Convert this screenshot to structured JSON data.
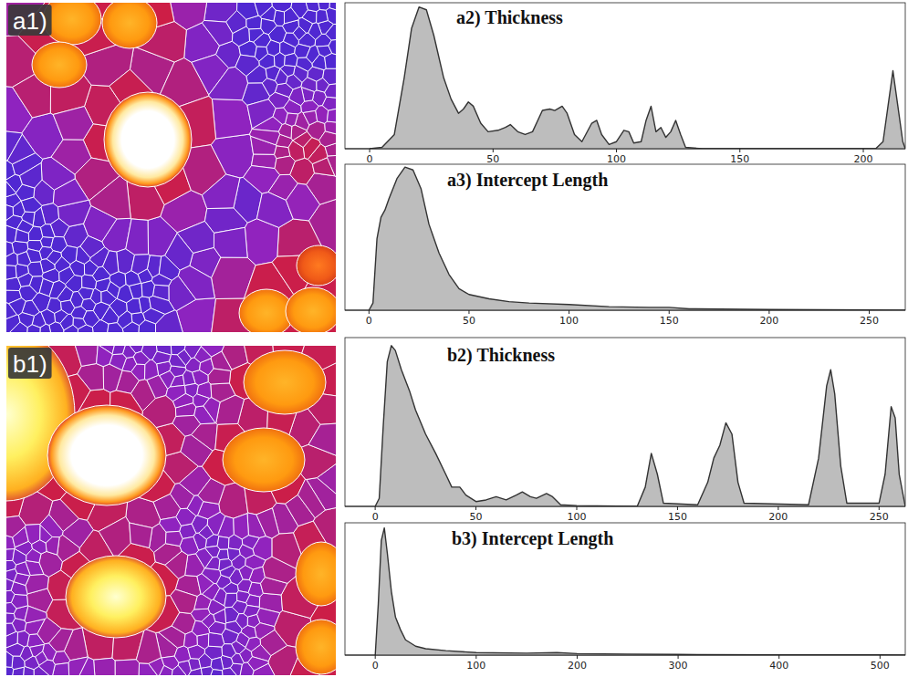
{
  "images": [
    {
      "label": "a1)"
    },
    {
      "label": "b1)"
    }
  ],
  "chart_data": [
    {
      "type": "area",
      "title": "a2) Thickness",
      "color": "#bdbdbd",
      "tick_labels": "x",
      "x": [
        0,
        5,
        10,
        14,
        17,
        20,
        23,
        26,
        30,
        33,
        36,
        38,
        40,
        42,
        45,
        48,
        52,
        55,
        57,
        60,
        63,
        66,
        70,
        73,
        75,
        78,
        80,
        83,
        86,
        90,
        92,
        94,
        97,
        100,
        103,
        105,
        107,
        110,
        112,
        114,
        116,
        118,
        120,
        122,
        124,
        126,
        128,
        135,
        205,
        208,
        210,
        212,
        214,
        216,
        217
      ],
      "values": [
        0,
        0.01,
        0.1,
        0.5,
        0.85,
        1.0,
        0.98,
        0.8,
        0.5,
        0.35,
        0.25,
        0.28,
        0.33,
        0.3,
        0.18,
        0.12,
        0.13,
        0.15,
        0.17,
        0.12,
        0.1,
        0.12,
        0.27,
        0.28,
        0.27,
        0.3,
        0.25,
        0.1,
        0.05,
        0.18,
        0.2,
        0.1,
        0.03,
        0.05,
        0.13,
        0.12,
        0.04,
        0.05,
        0.2,
        0.3,
        0.12,
        0.15,
        0.08,
        0.12,
        0.2,
        0.1,
        0.01,
        0,
        0,
        0.05,
        0.3,
        0.55,
        0.3,
        0.05,
        0
      ],
      "xlim": [
        -10,
        217
      ],
      "xticks": [
        0,
        50,
        100,
        150,
        200
      ],
      "ylim": [
        0,
        1.03
      ]
    },
    {
      "type": "area",
      "title": "a3) Intercept Length",
      "color": "#bdbdbd",
      "tick_labels": "x",
      "x": [
        0,
        2,
        4,
        6,
        8,
        10,
        14,
        18,
        22,
        26,
        30,
        35,
        40,
        45,
        50,
        60,
        70,
        80,
        100,
        120,
        140,
        150,
        160,
        200,
        250,
        268
      ],
      "values": [
        0,
        0.05,
        0.5,
        0.65,
        0.7,
        0.78,
        0.92,
        1.0,
        0.98,
        0.85,
        0.6,
        0.4,
        0.25,
        0.15,
        0.11,
        0.08,
        0.06,
        0.05,
        0.04,
        0.025,
        0.02,
        0.02,
        0.01,
        0.005,
        0.002,
        0
      ],
      "xlim": [
        -12,
        268
      ],
      "xticks": [
        0,
        50,
        100,
        150,
        200,
        250
      ],
      "ylim": [
        0,
        1.02
      ]
    },
    {
      "type": "area",
      "title": "b2) Thickness",
      "color": "#bdbdbd",
      "tick_labels": "x",
      "x": [
        0,
        2,
        4,
        6,
        8,
        10,
        13,
        17,
        20,
        25,
        30,
        35,
        38,
        42,
        45,
        50,
        55,
        60,
        65,
        70,
        73,
        77,
        80,
        85,
        88,
        92,
        100,
        130,
        134,
        137,
        140,
        143,
        160,
        165,
        168,
        171,
        174,
        177,
        180,
        183,
        215,
        220,
        224,
        226,
        228,
        231,
        234,
        250,
        253,
        256,
        258,
        260,
        263
      ],
      "values": [
        0,
        0.05,
        0.5,
        0.9,
        1.0,
        0.97,
        0.85,
        0.72,
        0.6,
        0.45,
        0.33,
        0.2,
        0.12,
        0.12,
        0.07,
        0.03,
        0.04,
        0.06,
        0.04,
        0.07,
        0.09,
        0.06,
        0.05,
        0.08,
        0.06,
        0.01,
        0.005,
        0,
        0.12,
        0.33,
        0.2,
        0.02,
        0.01,
        0.15,
        0.3,
        0.38,
        0.52,
        0.45,
        0.15,
        0.02,
        0.01,
        0.3,
        0.75,
        0.85,
        0.7,
        0.25,
        0.02,
        0.02,
        0.2,
        0.62,
        0.55,
        0.2,
        0
      ],
      "xlim": [
        -15,
        263
      ],
      "xticks": [
        0,
        50,
        100,
        150,
        200,
        250
      ],
      "ylim": [
        0,
        1.05
      ]
    },
    {
      "type": "area",
      "title": "b3) Intercept Length",
      "color": "#bdbdbd",
      "tick_labels": "x",
      "x": [
        0,
        3,
        6,
        9,
        12,
        16,
        20,
        25,
        30,
        40,
        50,
        70,
        100,
        150,
        180,
        200,
        250,
        300,
        400,
        500,
        525
      ],
      "values": [
        0,
        0.4,
        0.9,
        1.0,
        0.8,
        0.5,
        0.3,
        0.2,
        0.12,
        0.07,
        0.05,
        0.035,
        0.02,
        0.015,
        0.02,
        0.012,
        0.008,
        0.005,
        0.003,
        0.002,
        0
      ],
      "xlim": [
        -30,
        525
      ],
      "xticks": [
        0,
        100,
        200,
        300,
        400,
        500
      ],
      "ylim": [
        0,
        1.04
      ]
    }
  ]
}
